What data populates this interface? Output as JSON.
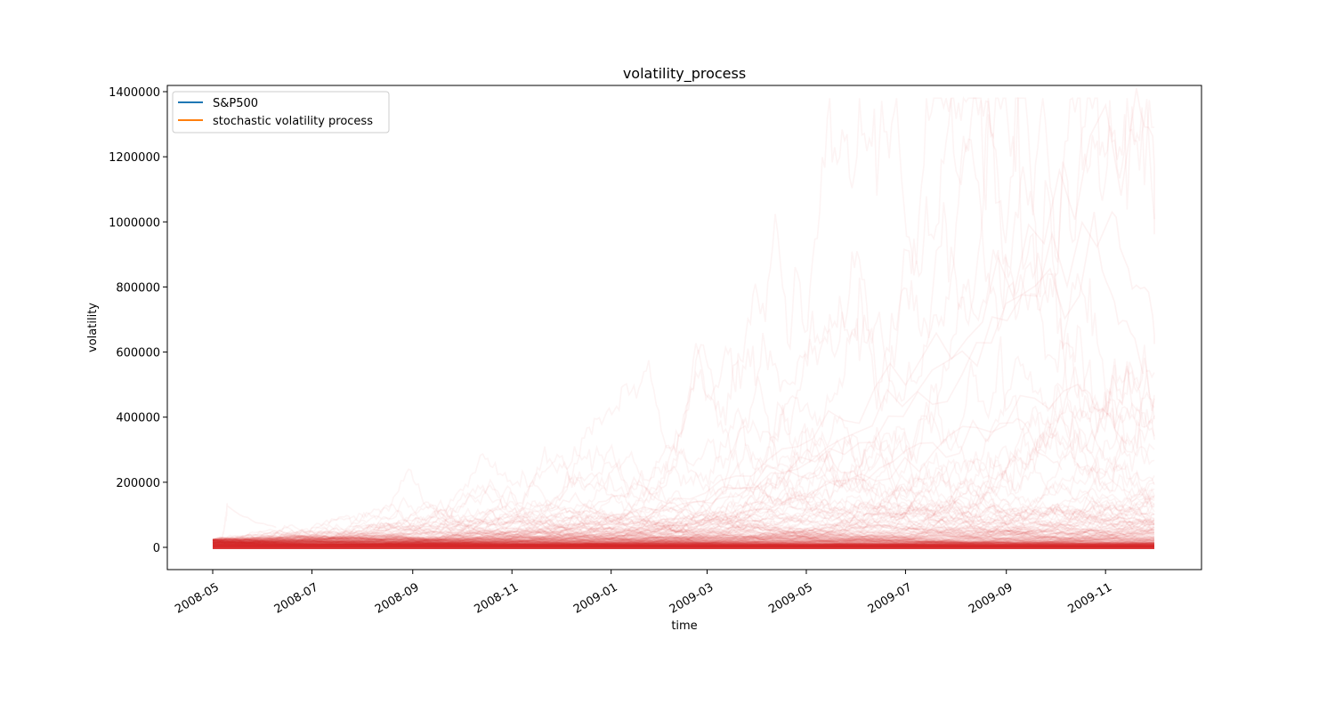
{
  "chart_data": {
    "type": "line",
    "title": "volatility_process",
    "xlabel": "time",
    "ylabel": "volatility",
    "x_range": [
      "2008-05-01",
      "2009-12-01"
    ],
    "ylim": [
      -65000,
      1420000
    ],
    "x_ticks": [
      "2008-05",
      "2008-07",
      "2008-09",
      "2008-11",
      "2009-01",
      "2009-03",
      "2009-05",
      "2009-07",
      "2009-09",
      "2009-11"
    ],
    "y_ticks": [
      0,
      200000,
      400000,
      600000,
      800000,
      1000000,
      1200000,
      1400000
    ],
    "y_tick_labels": [
      "0",
      "200000",
      "400000",
      "600000",
      "800000",
      "1000000",
      "1200000",
      "1400000"
    ],
    "grid": false,
    "legend": {
      "placement": "top-left",
      "entries": [
        {
          "label": "S&P500",
          "color": "#1f77b4"
        },
        {
          "label": "stochastic volatility process",
          "color": "#ff7f0e"
        }
      ]
    },
    "path_color": "#d62728",
    "series": [
      {
        "name": "S&P500",
        "color": "#1f77b4",
        "x": [
          "2008-05-01",
          "2009-12-01"
        ],
        "y": [
          1200,
          1100
        ]
      },
      {
        "name": "stochastic volatility process",
        "color": "#d62728",
        "description_points": [
          {
            "x": "2008-05-01",
            "y": 15000
          },
          {
            "x": "2008-09-01",
            "y": 20000
          },
          {
            "x": "2009-01-01",
            "y": 25000
          },
          {
            "x": "2009-05-01",
            "y": 40000
          },
          {
            "x": "2009-09-01",
            "y": 80000
          },
          {
            "x": "2009-11-15",
            "y": 150000
          }
        ]
      }
    ],
    "annotated_extremes": [
      {
        "x": "2009-11-20",
        "y": 1340000
      },
      {
        "x": "2009-10-25",
        "y": 920000
      },
      {
        "x": "2009-11-05",
        "y": 1060000
      },
      {
        "x": "2009-10-15",
        "y": 520000
      },
      {
        "x": "2009-09-05",
        "y": 420000
      },
      {
        "x": "2009-05-15",
        "y": 260000
      },
      {
        "x": "2009-01-15",
        "y": 190000
      },
      {
        "x": "2008-12-10",
        "y": 150000
      },
      {
        "x": "2008-05-10",
        "y": 130000
      }
    ]
  }
}
